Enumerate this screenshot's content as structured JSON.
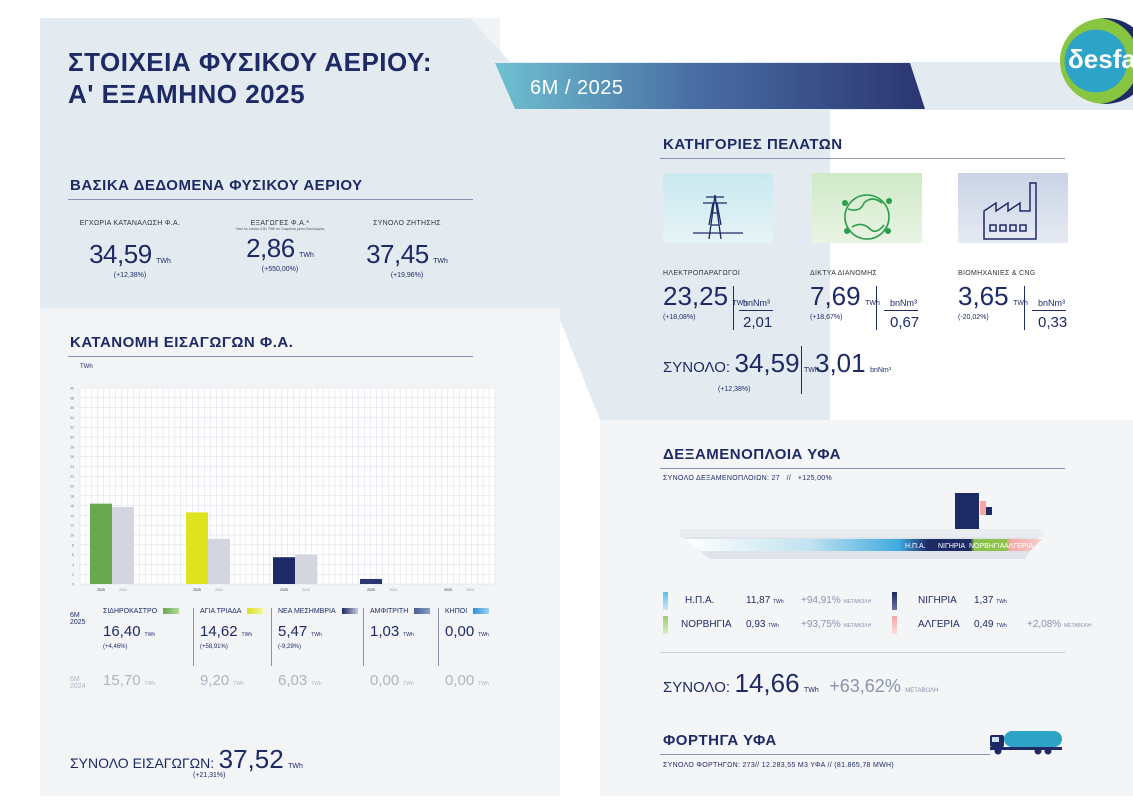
{
  "header": {
    "title_line1": "ΣΤΟΙΧΕΙΑ ΦΥΣΙΚΟΥ ΑΕΡΙΟΥ:",
    "title_line2": "Α' ΕΞΑΜΗΝΟ 2025",
    "period_badge": "6M / 2025",
    "logo_text": "δesfa"
  },
  "basic": {
    "title": "ΒΑΣΙΚΑ ΔΕΔΟΜΕΝΑ ΦΥΣΙΚΟΥ ΑΕΡΙΟΥ",
    "items": [
      {
        "label": "ΕΓΧΩΡΙΑ ΚΑΤΑΝΑΛΩΣΗ Φ.Α.",
        "note": "",
        "value": "34,59",
        "unit": "TWh",
        "change": "(+12,38%)"
      },
      {
        "label": "ΕΞΑΓΩΓΕΣ Φ.Α.*",
        "note": "*από τις οποίες 0,81 TWh σε Ουκρανία μέσω Βουλγαρίας",
        "value": "2,86",
        "unit": "TWh",
        "change": "(+550,00%)"
      },
      {
        "label": "ΣΥΝΟΛΟ ΖΗΤΗΣΗΣ",
        "note": "",
        "value": "37,45",
        "unit": "TWh",
        "change": "(+19,96%)"
      }
    ]
  },
  "imports": {
    "title": "ΚΑΤΑΝΟΜΗ ΕΙΣΑΓΩΓΩΝ Φ.Α.",
    "y_unit": "TWh",
    "row_label_2025": "6M 2025",
    "row_label_2024": "6M 2024",
    "points": [
      {
        "name": "ΣΙΔΗΡΟΚΑΣΤΡΟ",
        "value_2025": "16,40",
        "unit": "TWh",
        "change": "(+4,46%)",
        "value_2024": "15,70",
        "color": "#6aa84f"
      },
      {
        "name": "ΑΓΙΑ ΤΡΙΑΔΑ",
        "value_2025": "14,62",
        "unit": "TWh",
        "change": "(+58,91%)",
        "value_2024": "9,20",
        "color": "#d9e021"
      },
      {
        "name": "ΝΕΑ ΜΕΣΗΜΒΡΙΑ",
        "value_2025": "5,47",
        "unit": "TWh",
        "change": "(-9,29%)",
        "value_2024": "6,03",
        "color": "#1e2a66"
      },
      {
        "name": "ΑΜΦΙΤΡΙΤΗ",
        "value_2025": "1,03",
        "unit": "TWh",
        "change": "",
        "value_2024": "0,00",
        "color": "#4a5f8f"
      },
      {
        "name": "ΚΗΠΟΙ",
        "value_2025": "0,00",
        "unit": "TWh",
        "change": "",
        "value_2024": "0,00",
        "color": "#2f8fd8"
      }
    ],
    "total_label": "ΣΥΝΟΛΟ ΕΙΣΑΓΩΓΩΝ:",
    "total_value": "37,52",
    "total_unit": "TWh",
    "total_change": "(+21,31%)"
  },
  "chart_data": {
    "type": "bar",
    "title": "",
    "xlabel": "",
    "ylabel": "TWh",
    "ylim": [
      0,
      40
    ],
    "categories": [
      "ΣΙΔΗΡΟΚΑΣΤΡΟ",
      "ΑΓΙΑ ΤΡΙΑΔΑ",
      "ΝΕΑ ΜΕΣΗΜΒΡΙΑ",
      "ΑΜΦΙΤΡΙΤΗ",
      "ΚΗΠΟΙ"
    ],
    "x_tick_year_labels": [
      "2025",
      "2024"
    ],
    "series": [
      {
        "name": "2025",
        "values": [
          16.4,
          14.62,
          5.47,
          1.03,
          0.0
        ]
      },
      {
        "name": "2024",
        "values": [
          15.7,
          9.2,
          6.03,
          0.0,
          0.0
        ]
      }
    ],
    "grid": true
  },
  "customers": {
    "title": "ΚΑΤΗΓΟΡΙΕΣ ΠΕΛΑΤΩΝ",
    "items": [
      {
        "label": "ΗΛΕΚΤΡΟΠΑΡΑΓΩΓΟΙ",
        "value": "23,25",
        "unit": "TWh",
        "change": "(+18,08%)",
        "bnm_unit": "bnNm³",
        "bnm_value": "2,01",
        "icon": "power-tower-icon"
      },
      {
        "label": "ΔΙΚΤΥΑ ΔΙΑΝΟΜΗΣ",
        "value": "7,69",
        "unit": "TWh",
        "change": "(+18,67%)",
        "bnm_unit": "bnNm³",
        "bnm_value": "0,67",
        "icon": "globe-network-icon"
      },
      {
        "label": "ΒΙΟΜΗΧΑΝΙΕΣ & CNG",
        "value": "3,65",
        "unit": "TWh",
        "change": "(-20,02%)",
        "bnm_unit": "bnNm³",
        "bnm_value": "0,33",
        "icon": "factory-icon"
      }
    ],
    "total_label": "ΣΥΝΟΛΟ:",
    "total_value": "34,59",
    "total_unit": "TWh",
    "total_change": "(+12,38%)",
    "total_bnm": "3,01",
    "total_bnm_unit": "bnNm³"
  },
  "lng": {
    "title": "ΔΕΞΑΜΕΝΟΠΛΟΙΑ ΥΦΑ",
    "subtitle": "ΣΥΝΟΛΟ ΔΕΞΑΜΕΝΟΠΛΟΙΩΝ: 27   //   +125,00%",
    "ship_labels": [
      "Η.Π.Α.",
      "ΝΙΓΗΡΙΑ",
      "ΝΟΡΒΗΓΙΑ",
      "ΑΛΓΕΡΙΑ"
    ],
    "items": [
      {
        "country": "Η.Π.Α.",
        "value": "11,87",
        "unit": "TWh",
        "change": "+94,91%",
        "change_word": "ΜΕΤΑΒΟΛΗ",
        "color": "#5bc0eb"
      },
      {
        "country": "ΝΙΓΗΡΙΑ",
        "value": "1,37",
        "unit": "TWh",
        "change": "",
        "change_word": "",
        "color": "#1e2a66"
      },
      {
        "country": "ΝΟΡΒΗΓΙΑ",
        "value": "0,93",
        "unit": "TWh",
        "change": "+93,75%",
        "change_word": "ΜΕΤΑΒΟΛΗ",
        "color": "#9ccc65"
      },
      {
        "country": "ΑΛΓΕΡΙΑ",
        "value": "0,49",
        "unit": "TWh",
        "change": "+2,08%",
        "change_word": "ΜΕΤΑΒΟΛΗ",
        "color": "#f4a7a3"
      }
    ],
    "total_label": "ΣΥΝΟΛΟ:",
    "total_value": "14,66",
    "total_unit": "TWh",
    "total_change": "+63,62%",
    "total_change_word": "ΜΕΤΑΒΟΛΗ"
  },
  "trucks": {
    "title": "ΦΟΡΤΗΓΑ ΥΦΑ",
    "subtitle": "ΣΥΝΟΛΟ ΦΟΡΤΗΓΩΝ: 273// 12.283,55 M3 ΥΦΑ // (81.865,78 MWH)"
  }
}
